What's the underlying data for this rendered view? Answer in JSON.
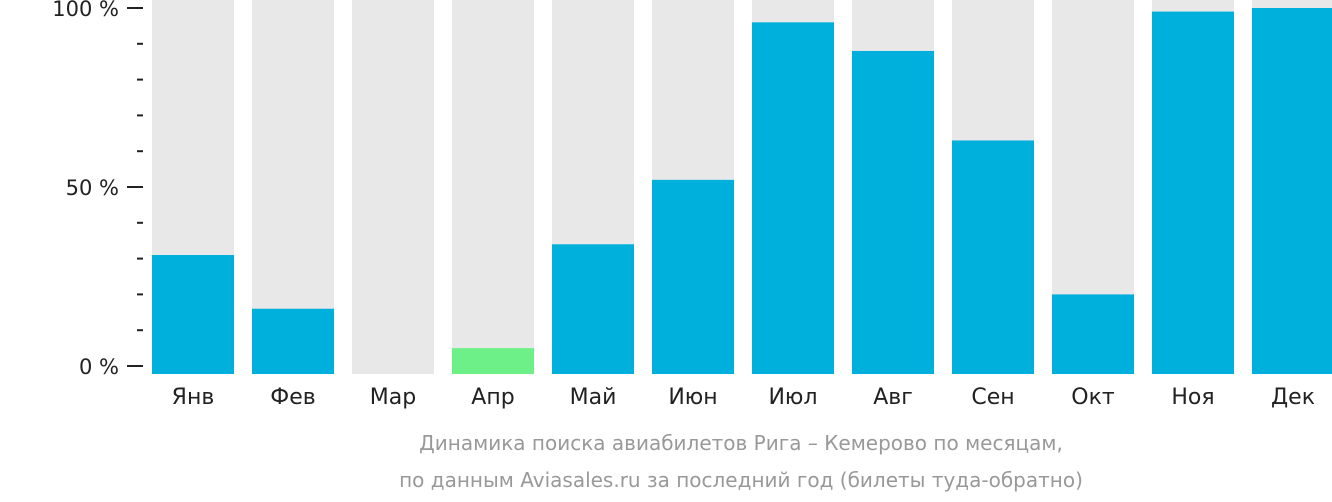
{
  "chart_data": {
    "type": "bar",
    "categories": [
      "Янв",
      "Фев",
      "Мар",
      "Апр",
      "Май",
      "Июн",
      "Июл",
      "Авг",
      "Сен",
      "Окт",
      "Ноя",
      "Дек"
    ],
    "values": [
      31,
      16,
      0,
      5,
      34,
      52,
      96,
      88,
      63,
      20,
      99,
      100
    ],
    "ylim": [
      0,
      100
    ],
    "yticks": [
      {
        "value": 0,
        "label": "0 %"
      },
      {
        "value": 50,
        "label": "50 %"
      },
      {
        "value": 100,
        "label": "100 %"
      }
    ],
    "minor_tick_step": 10,
    "highlight_index": 3,
    "caption_line1": "Динамика поиска авиабилетов Рига – Кемерово по месяцам,",
    "caption_line2": "по данным Aviasales.ru за последний год (билеты туда-обратно)",
    "colors": {
      "bar": "#00b0dc",
      "highlight": "#6ef089",
      "background_bar": "#e8e8e8",
      "axis": "#222222",
      "caption": "#999999"
    }
  }
}
